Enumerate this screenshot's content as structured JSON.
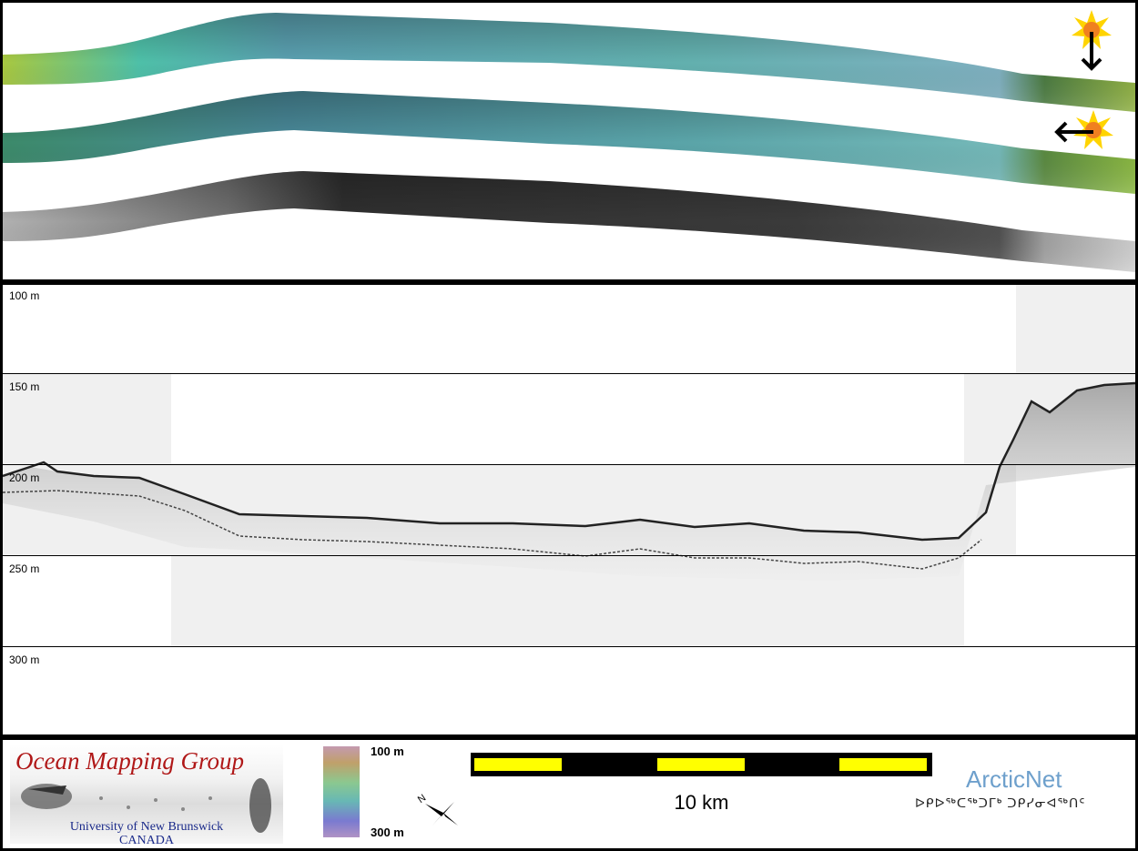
{
  "profile": {
    "depth_labels": [
      "100 m",
      "150 m",
      "200 m",
      "250 m",
      "300 m"
    ]
  },
  "footer": {
    "logo_title": "Ocean Mapping Group",
    "logo_university": "University of New Brunswick",
    "logo_country": "CANADA",
    "colorbar_top_label": "100 m",
    "colorbar_bottom_label": "300 m",
    "scale_label": "10 km",
    "partner_name": "ArcticNet",
    "partner_syllabics": "ᐅᑭᐅᖅᑕᖅᑐᒥᒃ ᑐᑭᓯᓂᐊᖅᑎᑦ"
  },
  "icons": {
    "sun_icon": "sun-icon",
    "arrow_down": "arrow-down-icon",
    "arrow_left": "arrow-left-icon",
    "north_arrow": "north-arrow-icon"
  },
  "colors": {
    "scale_yellow": "#ffff00",
    "logo_red": "#b01818",
    "logo_blue": "#1a2a8a",
    "arcticnet_blue": "#6ea0cc"
  }
}
